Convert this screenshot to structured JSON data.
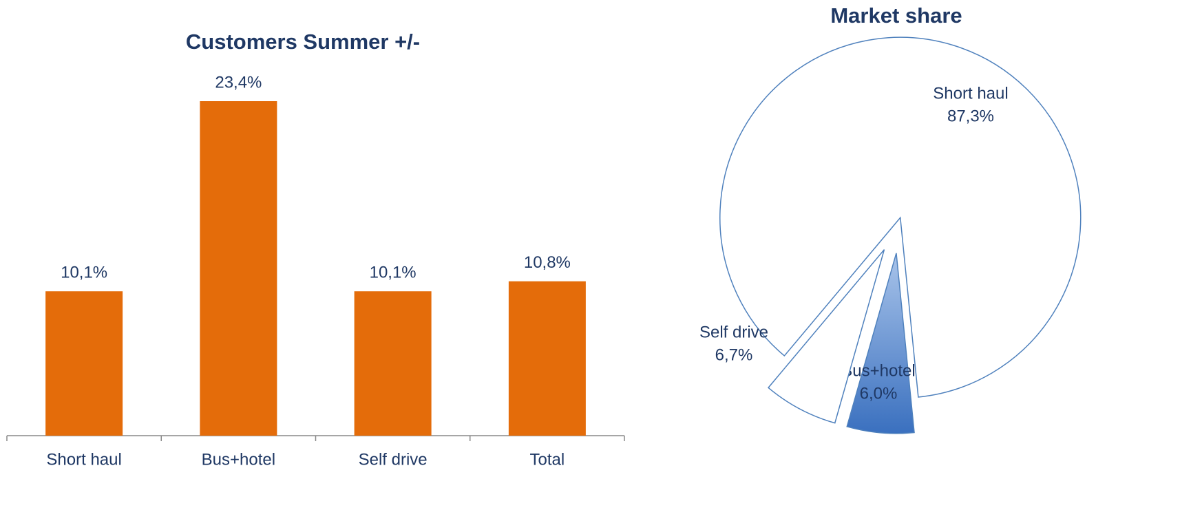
{
  "chart_data": [
    {
      "type": "bar",
      "title": "Customers Summer +/-",
      "categories": [
        "Short haul",
        "Bus+hotel",
        "Self drive",
        "Total"
      ],
      "values": [
        10.1,
        23.4,
        10.1,
        10.8
      ],
      "value_labels": [
        "10,1%",
        "23,4%",
        "10,1%",
        "10,8%"
      ],
      "color": "#e46c0a"
    },
    {
      "type": "pie",
      "title": "Market share",
      "categories": [
        "Short haul",
        "Bus+hotel",
        "Self drive"
      ],
      "values": [
        87.3,
        6.0,
        6.7
      ],
      "value_labels": [
        "87,3%",
        "6,0%",
        "6,7%"
      ],
      "colors": [
        "#ffffff",
        "#4a7ebf",
        "#ffffff"
      ]
    }
  ]
}
